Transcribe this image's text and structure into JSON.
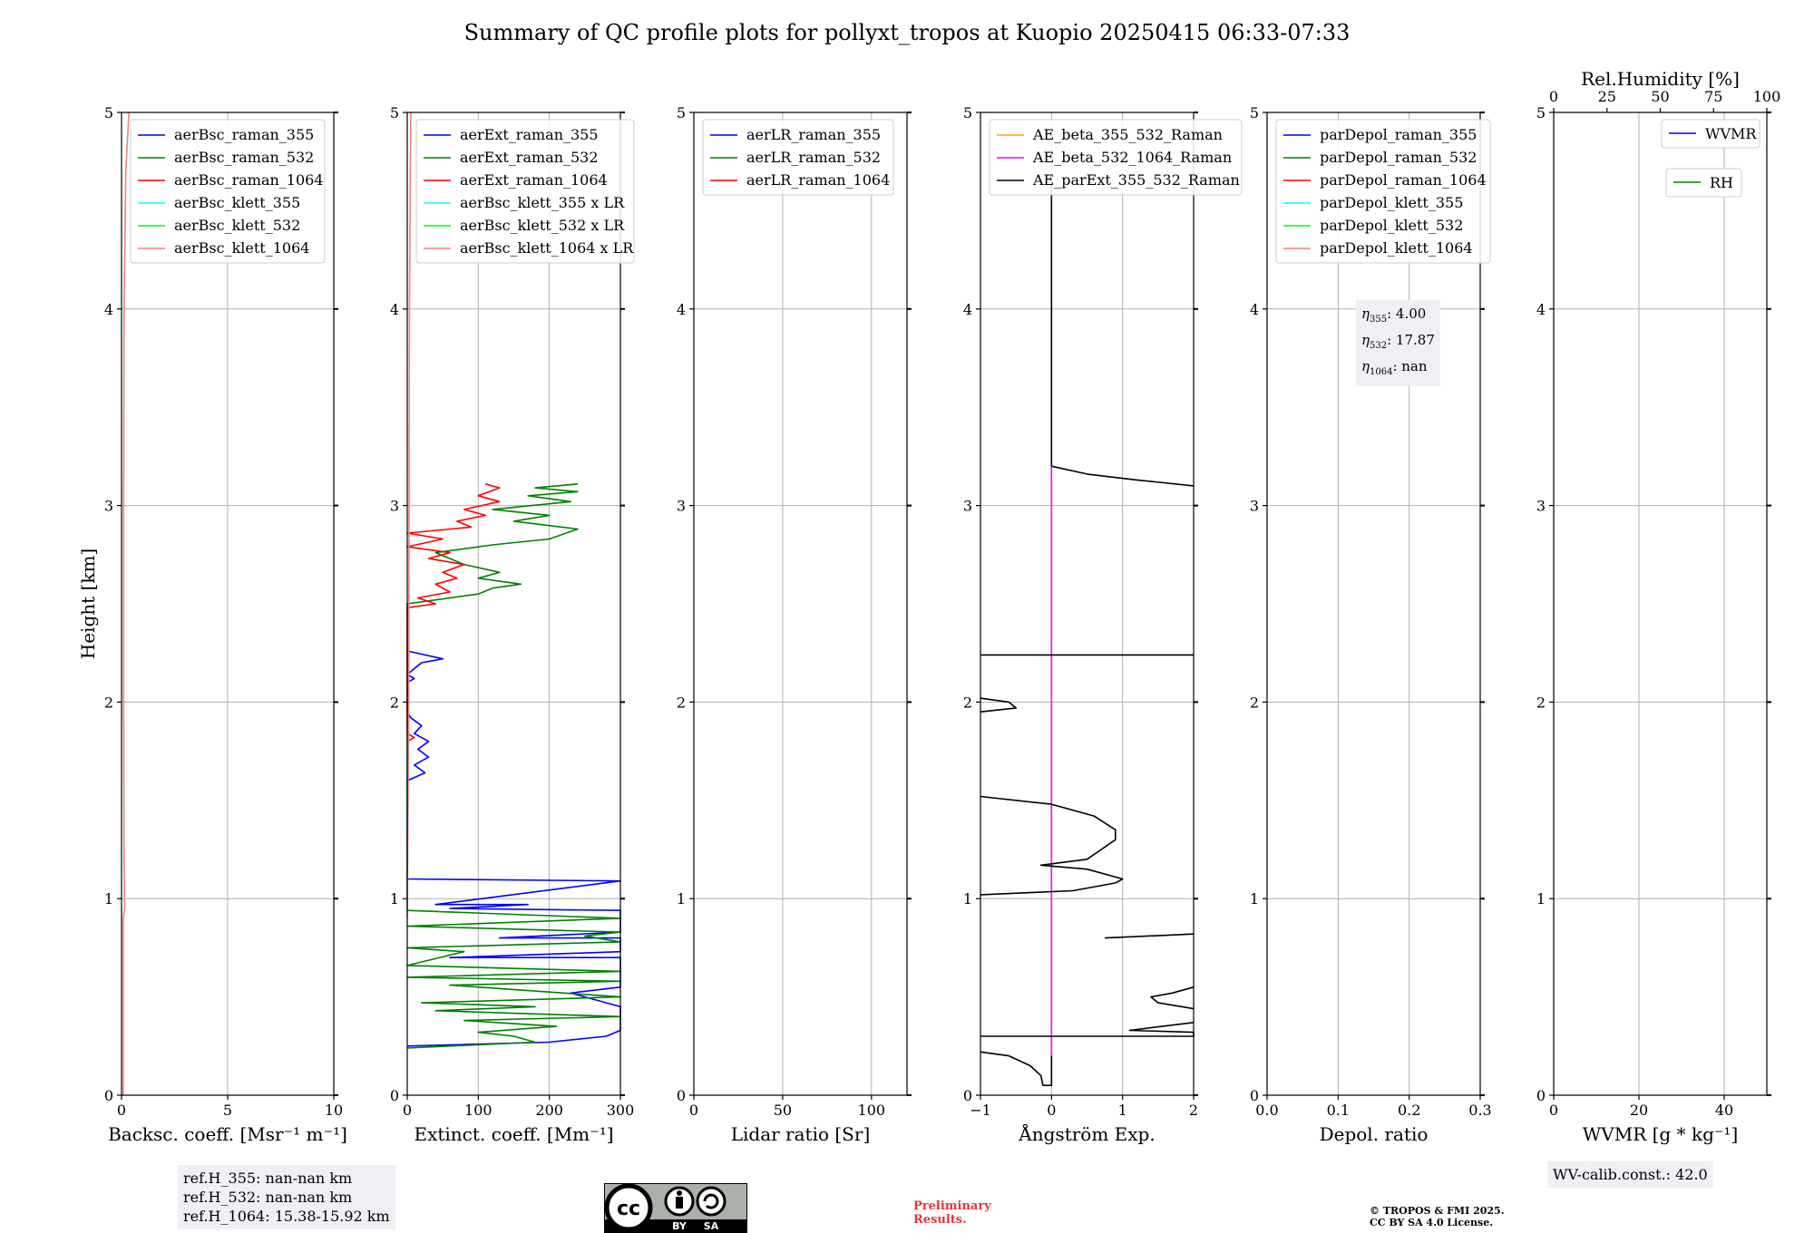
{
  "figure_title": "Summary of QC profile plots for pollyxt_tropos at Kuopio 20250415 06:33-07:33",
  "ref_box": {
    "line1": "ref.H_355: nan-nan km",
    "line2": "ref.H_532: nan-nan km",
    "line3": "ref.H_1064: 15.38-15.92 km"
  },
  "eta_box": {
    "eta355": ": 4.00",
    "eta532": ": 17.87",
    "eta1064": ": nan"
  },
  "wv_calib": "WV-calib.const.: 42.0",
  "preliminary": [
    "Preliminary",
    "Results."
  ],
  "copyright": [
    "© TROPOS & FMI 2025.",
    "CC BY SA 4.0 License."
  ],
  "license_badge": {
    "cc": "cc",
    "by": "BY",
    "sa": "SA"
  },
  "colors": {
    "blue": "#0000ff",
    "green": "#008000",
    "red": "#ff0000",
    "cyan": "#00ffff",
    "lime": "#00ff00",
    "salmon": "#f08080",
    "orange": "#ffa500",
    "magenta": "#ff00ff",
    "black": "#000000",
    "grid": "#b0b0b0",
    "infobox": "#eef0f3"
  },
  "chart_data": [
    {
      "type": "line",
      "panel": "backscatter",
      "xlabel": "Backsc. coeff. [Msr⁻¹ m⁻¹]",
      "ylabel": "Height [km]",
      "xlim": [
        0,
        10
      ],
      "ylim": [
        0,
        5
      ],
      "xticks": [
        0,
        5,
        10
      ],
      "yticks": [
        0,
        1,
        2,
        3,
        4,
        5
      ],
      "grid": true,
      "legend_position": "upper-left",
      "series": [
        {
          "name": "aerBsc_raman_355",
          "color": "blue",
          "points": []
        },
        {
          "name": "aerBsc_raman_532",
          "color": "green",
          "points": []
        },
        {
          "name": "aerBsc_raman_1064",
          "color": "red",
          "points": []
        },
        {
          "name": "aerBsc_klett_355",
          "color": "cyan",
          "points": []
        },
        {
          "name": "aerBsc_klett_532",
          "color": "lime",
          "points": []
        },
        {
          "name": "aerBsc_klett_1064",
          "color": "salmon",
          "points": [
            [
              0.08,
              0
            ],
            [
              0.08,
              0.9
            ],
            [
              0.15,
              0.95
            ],
            [
              0.12,
              1.2
            ],
            [
              0.1,
              2
            ],
            [
              0.1,
              3
            ],
            [
              0.12,
              4
            ],
            [
              0.2,
              4.7
            ],
            [
              0.35,
              5
            ]
          ]
        }
      ]
    },
    {
      "type": "line",
      "panel": "extinction",
      "xlabel": "Extinct. coeff. [Mm⁻¹]",
      "xlim": [
        0,
        300
      ],
      "ylim": [
        0,
        5
      ],
      "xticks": [
        0,
        100,
        200,
        300
      ],
      "yticks": [
        0,
        1,
        2,
        3,
        4,
        5
      ],
      "grid": true,
      "legend_position": "upper-left",
      "series": [
        {
          "name": "aerExt_raman_355",
          "color": "blue",
          "points": [
            [
              0,
              0.25
            ],
            [
              200,
              0.27
            ],
            [
              280,
              0.3
            ],
            [
              300,
              0.33
            ],
            [
              300,
              0.45
            ],
            [
              230,
              0.52
            ],
            [
              300,
              0.55
            ],
            [
              300,
              0.7
            ],
            [
              60,
              0.7
            ],
            [
              300,
              0.73
            ],
            [
              300,
              0.8
            ],
            [
              130,
              0.8
            ],
            [
              300,
              0.83
            ],
            [
              300,
              0.94
            ],
            [
              60,
              0.95
            ],
            [
              170,
              0.97
            ],
            [
              40,
              0.97
            ],
            [
              300,
              1.09
            ],
            [
              0,
              1.1
            ],
            [
              0,
              1.6
            ],
            [
              25,
              1.64
            ],
            [
              10,
              1.68
            ],
            [
              30,
              1.72
            ],
            [
              15,
              1.76
            ],
            [
              30,
              1.8
            ],
            [
              10,
              1.84
            ],
            [
              20,
              1.88
            ],
            [
              5,
              1.92
            ],
            [
              0,
              1.95
            ],
            [
              0,
              2.1
            ],
            [
              10,
              2.12
            ],
            [
              0,
              2.14
            ],
            [
              20,
              2.2
            ],
            [
              50,
              2.22
            ],
            [
              0,
              2.26
            ]
          ]
        },
        {
          "name": "aerExt_raman_532",
          "color": "green",
          "points": [
            [
              0,
              0.24
            ],
            [
              180,
              0.27
            ],
            [
              150,
              0.3
            ],
            [
              100,
              0.32
            ],
            [
              210,
              0.35
            ],
            [
              80,
              0.38
            ],
            [
              300,
              0.4
            ],
            [
              40,
              0.43
            ],
            [
              180,
              0.45
            ],
            [
              20,
              0.47
            ],
            [
              300,
              0.5
            ],
            [
              60,
              0.56
            ],
            [
              300,
              0.58
            ],
            [
              0,
              0.6
            ],
            [
              300,
              0.63
            ],
            [
              0,
              0.66
            ],
            [
              80,
              0.73
            ],
            [
              0,
              0.75
            ],
            [
              300,
              0.78
            ],
            [
              250,
              0.81
            ],
            [
              300,
              0.83
            ],
            [
              0,
              0.86
            ],
            [
              300,
              0.9
            ],
            [
              0,
              0.94
            ],
            [
              0,
              2.5
            ],
            [
              40,
              2.52
            ],
            [
              100,
              2.55
            ],
            [
              120,
              2.58
            ],
            [
              160,
              2.6
            ],
            [
              100,
              2.63
            ],
            [
              130,
              2.66
            ],
            [
              80,
              2.7
            ],
            [
              60,
              2.73
            ],
            [
              40,
              2.76
            ],
            [
              120,
              2.8
            ],
            [
              200,
              2.83
            ],
            [
              240,
              2.88
            ],
            [
              150,
              2.92
            ],
            [
              200,
              2.95
            ],
            [
              120,
              2.98
            ],
            [
              230,
              3.02
            ],
            [
              170,
              3.05
            ],
            [
              240,
              3.07
            ],
            [
              180,
              3.09
            ],
            [
              240,
              3.11
            ]
          ]
        },
        {
          "name": "aerExt_raman_1064",
          "color": "red",
          "points": [
            [
              0,
              1.8
            ],
            [
              10,
              1.82
            ],
            [
              0,
              1.84
            ],
            [
              0,
              2.48
            ],
            [
              40,
              2.5
            ],
            [
              15,
              2.53
            ],
            [
              60,
              2.56
            ],
            [
              40,
              2.6
            ],
            [
              70,
              2.63
            ],
            [
              50,
              2.66
            ],
            [
              80,
              2.7
            ],
            [
              30,
              2.73
            ],
            [
              60,
              2.76
            ],
            [
              0,
              2.79
            ],
            [
              50,
              2.83
            ],
            [
              0,
              2.86
            ],
            [
              90,
              2.89
            ],
            [
              70,
              2.92
            ],
            [
              110,
              2.95
            ],
            [
              80,
              2.98
            ],
            [
              130,
              3.02
            ],
            [
              100,
              3.05
            ],
            [
              130,
              3.09
            ],
            [
              110,
              3.11
            ]
          ]
        },
        {
          "name": "aerBsc_klett_355 x LR",
          "color": "cyan",
          "points": []
        },
        {
          "name": "aerBsc_klett_532 x LR",
          "color": "lime",
          "points": []
        },
        {
          "name": "aerBsc_klett_1064 x LR",
          "color": "salmon",
          "points": [
            [
              0,
              0.9
            ],
            [
              2,
              2
            ],
            [
              3,
              4
            ],
            [
              5,
              5
            ]
          ]
        }
      ]
    },
    {
      "type": "line",
      "panel": "lidar_ratio",
      "xlabel": "Lidar ratio [Sr]",
      "xlim": [
        0,
        120
      ],
      "ylim": [
        0,
        5
      ],
      "xticks": [
        0,
        50,
        100
      ],
      "yticks": [
        0,
        1,
        2,
        3,
        4,
        5
      ],
      "grid": true,
      "legend_position": "upper-left",
      "series": [
        {
          "name": "aerLR_raman_355",
          "color": "blue",
          "points": []
        },
        {
          "name": "aerLR_raman_532",
          "color": "green",
          "points": []
        },
        {
          "name": "aerLR_raman_1064",
          "color": "red",
          "points": []
        }
      ]
    },
    {
      "type": "line",
      "panel": "angstrom",
      "xlabel": "Ångström Exp.",
      "xlim": [
        -1,
        2
      ],
      "ylim": [
        0,
        5
      ],
      "xticks": [
        -1,
        0,
        1,
        2
      ],
      "xtick_labels": [
        "−1",
        "0",
        "1",
        "2"
      ],
      "yticks": [
        0,
        1,
        2,
        3,
        4,
        5
      ],
      "grid": true,
      "legend_position": "upper-left",
      "series": [
        {
          "name": "AE_beta_355_532_Raman",
          "color": "orange",
          "points": []
        },
        {
          "name": "AE_beta_532_1064_Raman",
          "color": "magenta",
          "points": [
            [
              0,
              0.05
            ],
            [
              0,
              3.2
            ]
          ]
        },
        {
          "name": "AE_parExt_355_532_Raman",
          "color": "black",
          "points": [
            [
              -1,
              0.22
            ],
            [
              -0.6,
              0.2
            ],
            [
              -0.3,
              0.15
            ],
            [
              -0.15,
              0.1
            ],
            [
              -0.12,
              0.05
            ],
            [
              0,
              0.05
            ],
            [
              0,
              0.2
            ]
          ]
        },
        {
          "name": "",
          "color": "black",
          "points": [
            [
              -1,
              0.3
            ],
            [
              2,
              0.3
            ],
            [
              2,
              0.32
            ],
            [
              1.1,
              0.33
            ],
            [
              2,
              0.37
            ]
          ]
        },
        {
          "name": "",
          "color": "black",
          "points": [
            [
              2,
              0.44
            ],
            [
              1.5,
              0.47
            ],
            [
              1.4,
              0.5
            ],
            [
              1.7,
              0.52
            ],
            [
              2,
              0.55
            ]
          ]
        },
        {
          "name": "",
          "color": "black",
          "points": [
            [
              0.75,
              0.8
            ],
            [
              2,
              0.82
            ]
          ]
        },
        {
          "name": "",
          "color": "black",
          "points": [
            [
              -1,
              1.02
            ],
            [
              0.3,
              1.04
            ],
            [
              0.9,
              1.08
            ],
            [
              1.0,
              1.1
            ],
            [
              0.5,
              1.15
            ],
            [
              -0.15,
              1.17
            ],
            [
              0.5,
              1.2
            ],
            [
              0.7,
              1.25
            ],
            [
              0.9,
              1.3
            ],
            [
              0.9,
              1.35
            ],
            [
              0.6,
              1.42
            ],
            [
              0,
              1.48
            ],
            [
              -1,
              1.52
            ]
          ]
        },
        {
          "name": "",
          "color": "black",
          "points": [
            [
              -1,
              1.95
            ],
            [
              -0.5,
              1.97
            ],
            [
              -0.6,
              2.0
            ],
            [
              -1,
              2.02
            ]
          ]
        },
        {
          "name": "",
          "color": "black",
          "points": [
            [
              -1,
              2.24
            ],
            [
              2,
              2.24
            ]
          ]
        },
        {
          "name": "",
          "color": "black",
          "points": [
            [
              0,
              3.2
            ],
            [
              0.5,
              3.16
            ],
            [
              1.2,
              3.13
            ],
            [
              2,
              3.1
            ]
          ]
        },
        {
          "name": "",
          "color": "black",
          "points": [
            [
              0,
              3.2
            ],
            [
              0,
              4.65
            ]
          ]
        }
      ]
    },
    {
      "type": "line",
      "panel": "depolarization",
      "xlabel": "Depol. ratio",
      "xlim": [
        0,
        0.3
      ],
      "ylim": [
        0,
        5
      ],
      "xticks": [
        0,
        0.1,
        0.2,
        0.3
      ],
      "xtick_labels": [
        "0.0",
        "0.1",
        "0.2",
        "0.3"
      ],
      "yticks": [
        0,
        1,
        2,
        3,
        4,
        5
      ],
      "grid": true,
      "legend_position": "upper-left",
      "series": [
        {
          "name": "parDepol_raman_355",
          "color": "blue",
          "points": []
        },
        {
          "name": "parDepol_raman_532",
          "color": "green",
          "points": []
        },
        {
          "name": "parDepol_raman_1064",
          "color": "red",
          "points": []
        },
        {
          "name": "parDepol_klett_355",
          "color": "cyan",
          "points": []
        },
        {
          "name": "parDepol_klett_532",
          "color": "lime",
          "points": []
        },
        {
          "name": "parDepol_klett_1064",
          "color": "salmon",
          "points": []
        }
      ]
    },
    {
      "type": "line",
      "panel": "water_vapor",
      "xlabel": "WVMR [g * kg⁻¹]",
      "xlim": [
        0,
        50
      ],
      "ylim": [
        0,
        5
      ],
      "xticks": [
        0,
        20,
        40
      ],
      "yticks": [
        0,
        1,
        2,
        3,
        4,
        5
      ],
      "top_xlabel": "Rel.Humidity [%]",
      "top_xlim": [
        0,
        100
      ],
      "top_xticks": [
        0,
        25,
        50,
        75,
        100
      ],
      "grid": true,
      "legend_position": "upper-right",
      "series": [
        {
          "name": "WVMR",
          "color": "blue",
          "points": []
        },
        {
          "name": "RH",
          "color": "green",
          "points": []
        }
      ]
    }
  ]
}
